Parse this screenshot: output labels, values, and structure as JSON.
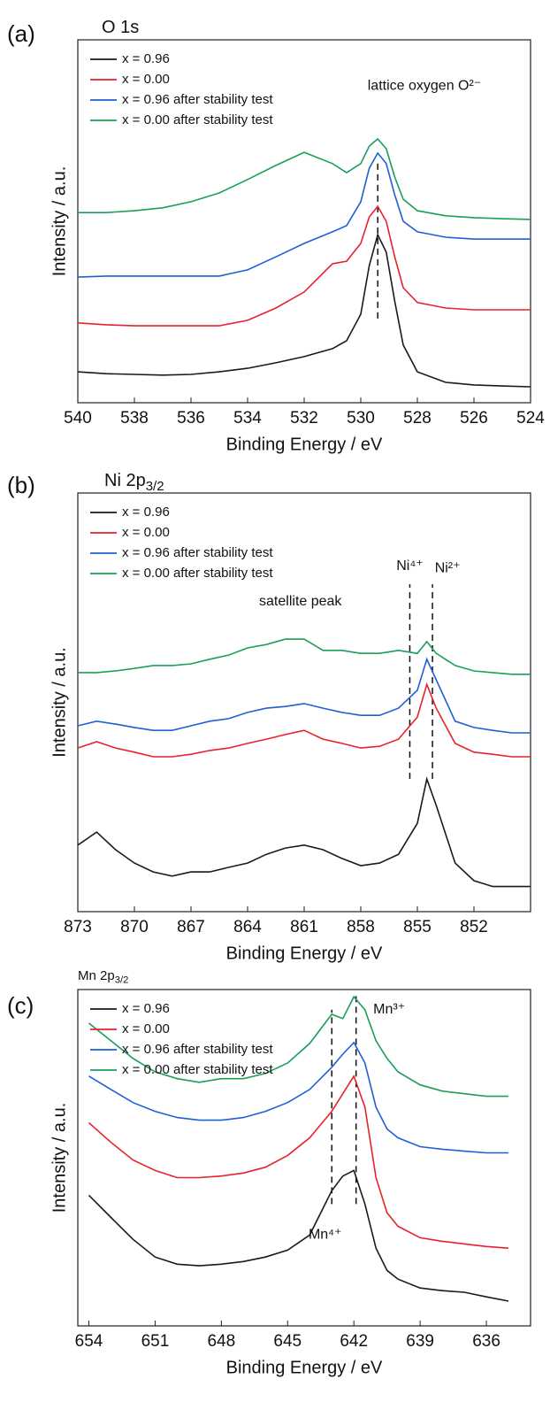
{
  "chart_data": [
    {
      "type": "line",
      "panel_label": "(a)",
      "title": "O 1s",
      "xlabel": "Binding Energy / eV",
      "ylabel": "Intensity / a.u.",
      "xlim": [
        540,
        524
      ],
      "xticks": [
        540,
        538,
        536,
        534,
        532,
        530,
        528,
        526,
        524
      ],
      "ylim": [
        0,
        100
      ],
      "legend": "upper left",
      "x": [
        540,
        539,
        538,
        537,
        536,
        535,
        534,
        533,
        532,
        531,
        530.5,
        530,
        529.7,
        529.4,
        529.1,
        528.8,
        528.5,
        528,
        527,
        526,
        525,
        524
      ],
      "series": [
        {
          "name": "x = 0.96",
          "color": "#1a1a1a",
          "values": [
            8.5,
            8.0,
            7.8,
            7.6,
            7.8,
            8.5,
            9.5,
            11.0,
            12.7,
            14.9,
            17.1,
            24.4,
            37.8,
            46.3,
            41.5,
            28.0,
            15.9,
            8.5,
            5.6,
            4.9,
            4.6,
            4.4
          ]
        },
        {
          "name": "x = 0.00",
          "color": "#e8212b",
          "values": [
            22.0,
            21.5,
            21.2,
            21.2,
            21.2,
            21.2,
            22.7,
            26.1,
            30.5,
            38.3,
            39.0,
            43.9,
            51.2,
            54.1,
            50.0,
            40.2,
            31.7,
            27.6,
            26.1,
            25.6,
            25.6,
            25.6
          ]
        },
        {
          "name": "x = 0.96 after stability test",
          "color": "#1f5fd6",
          "values": [
            34.6,
            34.9,
            34.9,
            34.9,
            34.9,
            34.9,
            36.6,
            40.2,
            43.9,
            47.1,
            48.8,
            55.4,
            64.6,
            68.8,
            65.9,
            57.3,
            50.0,
            47.1,
            45.6,
            45.1,
            45.1,
            45.1
          ]
        },
        {
          "name": "x = 0.00 after stability test",
          "color": "#1a9e5a",
          "values": [
            52.4,
            52.4,
            52.9,
            53.7,
            55.4,
            57.8,
            61.5,
            65.4,
            69.0,
            65.9,
            63.4,
            65.9,
            70.7,
            72.7,
            70.0,
            62.2,
            56.1,
            52.9,
            51.5,
            51.0,
            50.7,
            50.5
          ]
        }
      ],
      "reference_lines": [
        {
          "x": 529.4,
          "y": [
            23.2,
            65.9
          ]
        }
      ],
      "annotations": [
        {
          "text": "lattice oxygen O²⁻",
          "x": 527.75,
          "y": 87.3
        }
      ]
    },
    {
      "type": "line",
      "panel_label": "(b)",
      "title": "Ni 2p",
      "title_subscript": "3/2",
      "xlabel": "Binding Energy / eV",
      "ylabel": "Intensity / a.u.",
      "xlim": [
        873,
        849
      ],
      "xticks": [
        873,
        870,
        867,
        864,
        861,
        858,
        855,
        852
      ],
      "ylim": [
        0,
        100
      ],
      "legend": "upper left",
      "x": [
        873,
        872,
        871,
        870,
        869,
        868,
        867,
        866,
        865,
        864,
        863,
        862,
        861,
        860,
        859,
        858,
        857,
        856,
        855,
        854.5,
        854,
        853,
        852,
        851,
        850,
        849
      ],
      "series": [
        {
          "name": "x = 0.96",
          "color": "#1a1a1a",
          "values": [
            15.9,
            19.0,
            14.8,
            11.6,
            9.5,
            8.5,
            9.5,
            9.5,
            10.6,
            11.6,
            13.7,
            15.2,
            15.9,
            14.8,
            12.7,
            11.0,
            11.6,
            13.7,
            21.1,
            31.7,
            25.4,
            11.6,
            7.4,
            6.0,
            6.0,
            6.0
          ]
        },
        {
          "name": "x = 0.00",
          "color": "#e8212b",
          "values": [
            39.1,
            40.6,
            39.1,
            38.1,
            37.0,
            37.0,
            37.6,
            38.5,
            39.1,
            40.2,
            41.2,
            42.3,
            43.3,
            41.2,
            40.2,
            39.1,
            39.5,
            41.2,
            46.5,
            54.3,
            48.6,
            40.2,
            38.1,
            37.6,
            37.0,
            37.0
          ]
        },
        {
          "name": "x = 0.96 after stability test",
          "color": "#1f5fd6",
          "values": [
            44.4,
            45.5,
            44.8,
            44.0,
            43.3,
            43.3,
            44.4,
            45.5,
            46.1,
            47.6,
            48.6,
            49.0,
            49.7,
            48.6,
            47.6,
            46.9,
            46.9,
            48.6,
            52.9,
            60.3,
            55.4,
            45.5,
            44.0,
            43.3,
            42.7,
            42.7
          ]
        },
        {
          "name": "x = 0.00 after stability test",
          "color": "#1a9e5a",
          "values": [
            57.1,
            57.1,
            57.5,
            58.1,
            58.8,
            58.8,
            59.2,
            60.3,
            61.3,
            63.0,
            63.8,
            65.1,
            65.1,
            62.4,
            62.4,
            61.7,
            61.7,
            62.4,
            61.7,
            64.5,
            61.7,
            58.8,
            57.5,
            57.1,
            56.7,
            56.7
          ]
        }
      ],
      "reference_lines": [
        {
          "x": 855.4,
          "y": [
            31.7,
            78.2
          ]
        },
        {
          "x": 854.2,
          "y": [
            31.7,
            78.2
          ]
        }
      ],
      "annotations": [
        {
          "text": "satellite peak",
          "x": 861.2,
          "y": 74.0
        },
        {
          "text": "Ni⁴⁺",
          "x": 855.4,
          "y": 82.5
        },
        {
          "text": "Ni²⁺",
          "x": 853.4,
          "y": 82.0
        }
      ]
    },
    {
      "type": "line",
      "panel_label": "(c)",
      "title": "Mn 2p",
      "title_subscript": "3/2",
      "xlabel": "Binding Energy / eV",
      "ylabel": "Intensity / a.u.",
      "xlim": [
        654.5,
        634
      ],
      "xticks": [
        654,
        651,
        648,
        645,
        642,
        639,
        636
      ],
      "ylim": [
        0,
        103
      ],
      "legend": "upper left",
      "x": [
        654,
        653,
        652,
        651,
        650,
        649,
        648,
        647,
        646,
        645,
        644,
        643,
        642.5,
        642,
        641.5,
        641,
        640.5,
        640,
        639,
        638,
        637,
        636,
        635
      ],
      "series": [
        {
          "name": "x = 0.96",
          "color": "#1a1a1a",
          "values": [
            40.0,
            33.2,
            26.5,
            21.1,
            18.9,
            18.4,
            18.9,
            19.7,
            21.1,
            23.2,
            27.8,
            41.4,
            45.9,
            47.6,
            37.3,
            23.8,
            17.0,
            14.3,
            11.6,
            10.8,
            10.3,
            8.9,
            7.6
          ]
        },
        {
          "name": "x = 0.00",
          "color": "#e8212b",
          "values": [
            62.2,
            56.2,
            50.8,
            47.6,
            45.4,
            45.4,
            45.9,
            46.8,
            48.6,
            52.2,
            57.6,
            65.7,
            71.1,
            76.5,
            67.0,
            45.4,
            34.6,
            30.5,
            27.0,
            25.9,
            25.1,
            24.3,
            23.8
          ]
        },
        {
          "name": "x = 0.96 after stability test",
          "color": "#1f5fd6",
          "values": [
            76.5,
            72.4,
            68.4,
            65.7,
            63.8,
            63.0,
            63.0,
            63.8,
            65.7,
            68.4,
            72.4,
            79.2,
            83.2,
            86.8,
            80.5,
            67.0,
            60.3,
            57.6,
            54.9,
            54.1,
            53.5,
            53.0,
            53.0
          ]
        },
        {
          "name": "x = 0.00 after stability test",
          "color": "#1a9e5a",
          "values": [
            92.7,
            87.3,
            81.9,
            77.8,
            75.7,
            74.6,
            75.7,
            75.7,
            77.3,
            80.5,
            86.5,
            95.4,
            94.1,
            100.8,
            96.8,
            87.3,
            81.9,
            77.8,
            73.8,
            71.9,
            71.1,
            70.3,
            70.3
          ]
        }
      ],
      "reference_lines": [
        {
          "x": 643.0,
          "y": [
            37.3,
            96.8
          ]
        },
        {
          "x": 641.9,
          "y": [
            37.3,
            102.2
          ]
        }
      ],
      "annotations": [
        {
          "text": "Mn³⁺",
          "x": 640.4,
          "y": 96.8
        },
        {
          "text": "Mn⁴⁺",
          "x": 643.3,
          "y": 27.8
        }
      ]
    }
  ]
}
